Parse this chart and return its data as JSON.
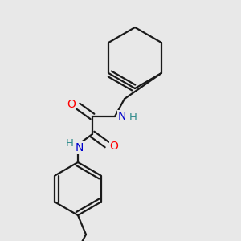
{
  "background_color": "#e8e8e8",
  "bond_color": "#1a1a1a",
  "nitrogen_color": "#0000cd",
  "nitrogen_h_color": "#2e8b8b",
  "oxygen_color": "#ff0000",
  "line_width": 1.6,
  "figsize": [
    3.0,
    3.0
  ],
  "dpi": 100,
  "xlim": [
    0,
    300
  ],
  "ylim": [
    0,
    300
  ]
}
